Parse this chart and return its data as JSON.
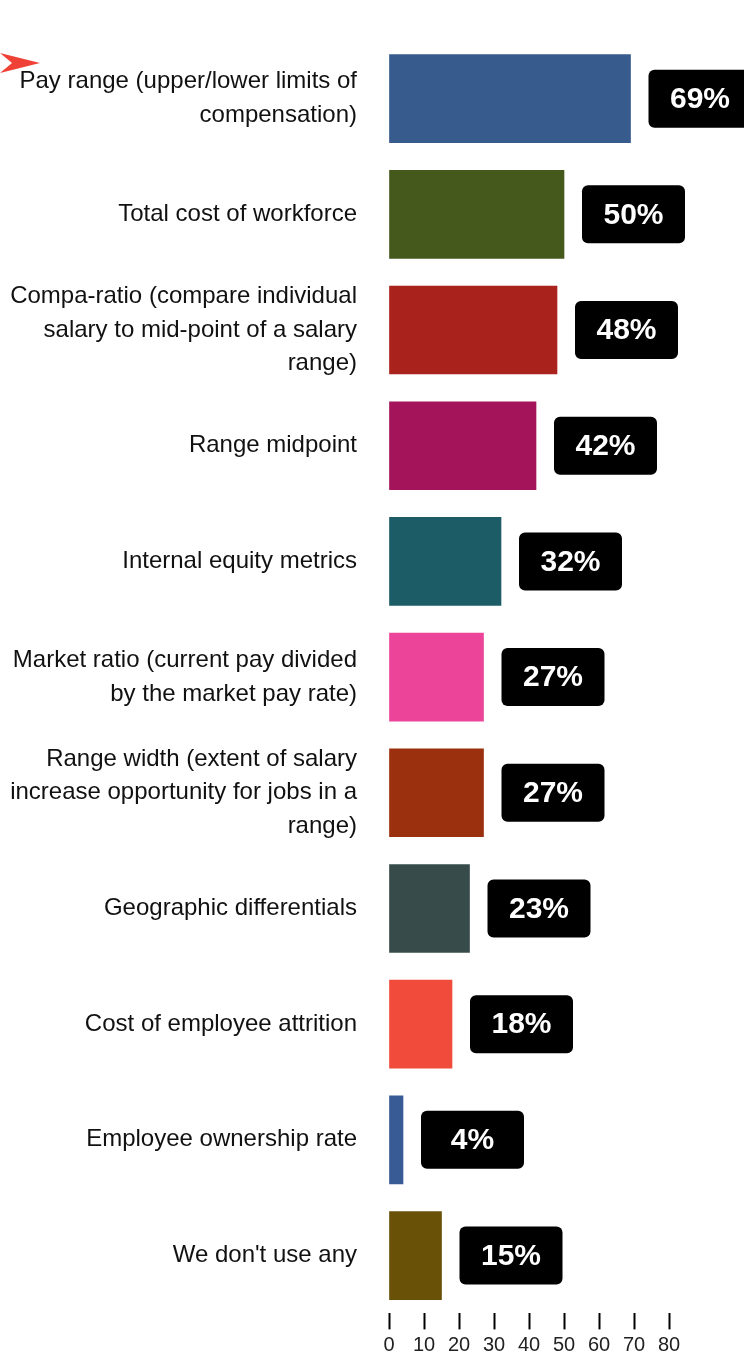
{
  "chart_data": {
    "type": "bar",
    "orientation": "horizontal",
    "categories": [
      "Pay range (upper/lower limits of compensation)",
      "Total cost of workforce",
      "Compa-ratio (compare individual salary to mid-point of a salary range)",
      "Range midpoint",
      "Internal equity metrics",
      "Market ratio (current pay divided by the market pay rate)",
      "Range width (extent of salary increase opportunity for jobs in a range)",
      "Geographic differentials",
      "Cost of employee attrition",
      "Employee ownership rate",
      "We don't use any"
    ],
    "values": [
      69,
      50,
      48,
      42,
      32,
      27,
      27,
      23,
      18,
      4,
      15
    ],
    "value_labels": [
      "69%",
      "50%",
      "48%",
      "42%",
      "32%",
      "27%",
      "27%",
      "23%",
      "18%",
      "4%",
      "15%"
    ],
    "colors": [
      "#365b8c",
      "#46591d",
      "#aa221c",
      "#a3145a",
      "#1c5c66",
      "#ec4499",
      "#9a300d",
      "#374c4a",
      "#f04b3b",
      "#385a95",
      "#6a5108"
    ],
    "xlim": [
      0,
      80
    ],
    "xticks": [
      0,
      10,
      20,
      30,
      40,
      50,
      60,
      70,
      80
    ],
    "grid": false,
    "legend": false
  }
}
